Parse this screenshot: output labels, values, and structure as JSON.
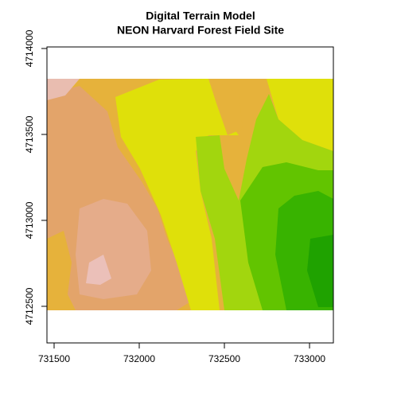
{
  "chart_data": {
    "type": "raster",
    "title": "Digital Terrain Model",
    "subtitle": "NEON Harvard Forest Field Site",
    "xlim": [
      731458,
      733140
    ],
    "xticks": [
      731500,
      732000,
      732500,
      733000
    ],
    "ylim": [
      4712287,
      4714009
    ],
    "yticks": [
      4712500,
      4713000,
      4713500,
      4714000
    ]
  }
}
